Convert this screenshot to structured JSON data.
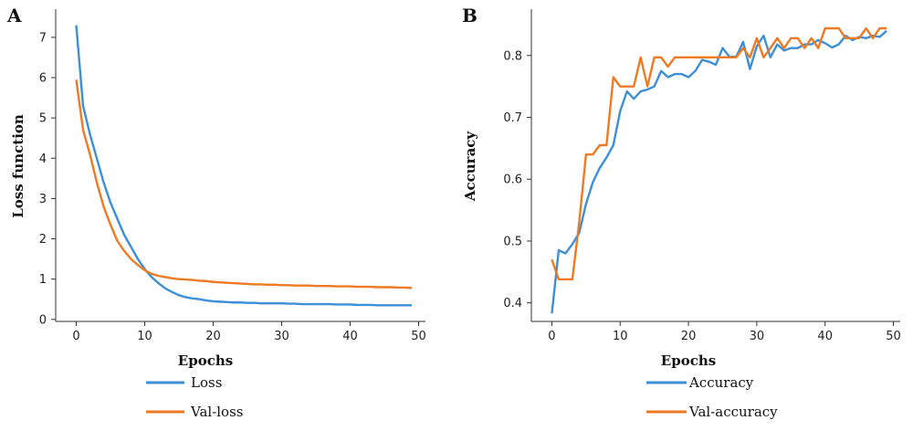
{
  "colors": {
    "series1": "#3d8fd6",
    "series2": "#ee7a24",
    "axis": "#333333"
  },
  "chart_data": [
    {
      "type": "line",
      "panel_label": "A",
      "xlabel": "Epochs",
      "ylabel": "Loss function",
      "xlim": [
        -3,
        51
      ],
      "ylim": [
        -0.05,
        7.7
      ],
      "xticks": [
        0,
        10,
        20,
        30,
        40,
        50
      ],
      "yticks": [
        0,
        1,
        2,
        3,
        4,
        5,
        6,
        7
      ],
      "legend_position": "bottom-left below axes",
      "series": [
        {
          "name": "Loss",
          "x": [
            0,
            1,
            2,
            3,
            4,
            5,
            6,
            7,
            8,
            9,
            10,
            11,
            12,
            13,
            14,
            15,
            16,
            17,
            18,
            19,
            20,
            21,
            22,
            23,
            24,
            25,
            26,
            27,
            28,
            29,
            30,
            31,
            32,
            33,
            34,
            35,
            36,
            37,
            38,
            39,
            40,
            41,
            42,
            43,
            44,
            45,
            46,
            47,
            48,
            49
          ],
          "y": [
            7.3,
            5.3,
            4.6,
            4.0,
            3.4,
            2.9,
            2.5,
            2.1,
            1.8,
            1.5,
            1.25,
            1.05,
            0.9,
            0.77,
            0.68,
            0.6,
            0.55,
            0.52,
            0.5,
            0.47,
            0.45,
            0.44,
            0.43,
            0.42,
            0.42,
            0.41,
            0.41,
            0.4,
            0.4,
            0.4,
            0.4,
            0.39,
            0.39,
            0.38,
            0.38,
            0.38,
            0.38,
            0.38,
            0.37,
            0.37,
            0.37,
            0.36,
            0.36,
            0.36,
            0.35,
            0.35,
            0.35,
            0.35,
            0.35,
            0.35
          ]
        },
        {
          "name": "Val-loss",
          "x": [
            0,
            1,
            2,
            3,
            4,
            5,
            6,
            7,
            8,
            9,
            10,
            11,
            12,
            13,
            14,
            15,
            16,
            17,
            18,
            19,
            20,
            21,
            22,
            23,
            24,
            25,
            26,
            27,
            28,
            29,
            30,
            31,
            32,
            33,
            34,
            35,
            36,
            37,
            38,
            39,
            40,
            41,
            42,
            43,
            44,
            45,
            46,
            47,
            48,
            49
          ],
          "y": [
            5.95,
            4.7,
            4.1,
            3.4,
            2.8,
            2.35,
            1.95,
            1.7,
            1.5,
            1.35,
            1.22,
            1.13,
            1.08,
            1.05,
            1.02,
            1.0,
            0.99,
            0.98,
            0.96,
            0.95,
            0.93,
            0.92,
            0.91,
            0.9,
            0.89,
            0.88,
            0.87,
            0.87,
            0.86,
            0.86,
            0.85,
            0.85,
            0.84,
            0.84,
            0.84,
            0.83,
            0.83,
            0.83,
            0.82,
            0.82,
            0.82,
            0.81,
            0.81,
            0.81,
            0.8,
            0.8,
            0.8,
            0.79,
            0.79,
            0.78
          ]
        }
      ]
    },
    {
      "type": "line",
      "panel_label": "B",
      "xlabel": "Epochs",
      "ylabel": "Accuracy",
      "xlim": [
        -3,
        51
      ],
      "ylim": [
        0.37,
        0.875
      ],
      "xticks": [
        0,
        10,
        20,
        30,
        40,
        50
      ],
      "yticks": [
        0.4,
        0.5,
        0.6,
        0.7,
        0.8
      ],
      "ytick_labels": [
        "0.4",
        "0.5",
        "0.6",
        "0.7",
        "0.8"
      ],
      "legend_position": "bottom-left below axes",
      "series": [
        {
          "name": "Accuracy",
          "x": [
            0,
            1,
            2,
            3,
            4,
            5,
            6,
            7,
            8,
            9,
            10,
            11,
            12,
            13,
            14,
            15,
            16,
            17,
            18,
            19,
            20,
            21,
            22,
            23,
            24,
            25,
            26,
            27,
            28,
            29,
            30,
            31,
            32,
            33,
            34,
            35,
            36,
            37,
            38,
            39,
            40,
            41,
            42,
            43,
            44,
            45,
            46,
            47,
            48,
            49
          ],
          "y": [
            0.383,
            0.485,
            0.48,
            0.495,
            0.513,
            0.56,
            0.595,
            0.618,
            0.635,
            0.655,
            0.71,
            0.742,
            0.73,
            0.742,
            0.745,
            0.75,
            0.775,
            0.765,
            0.77,
            0.77,
            0.765,
            0.775,
            0.793,
            0.79,
            0.785,
            0.812,
            0.798,
            0.798,
            0.822,
            0.778,
            0.815,
            0.832,
            0.797,
            0.818,
            0.808,
            0.812,
            0.812,
            0.818,
            0.818,
            0.825,
            0.82,
            0.813,
            0.818,
            0.832,
            0.825,
            0.83,
            0.828,
            0.832,
            0.83,
            0.84
          ]
        },
        {
          "name": "Val-accuracy",
          "x": [
            0,
            1,
            2,
            3,
            4,
            5,
            6,
            7,
            8,
            9,
            10,
            11,
            12,
            13,
            14,
            15,
            16,
            17,
            18,
            19,
            20,
            21,
            22,
            23,
            24,
            25,
            26,
            27,
            28,
            29,
            30,
            31,
            32,
            33,
            34,
            35,
            36,
            37,
            38,
            39,
            40,
            41,
            42,
            43,
            44,
            45,
            46,
            47,
            48,
            49
          ],
          "y": [
            0.47,
            0.438,
            0.438,
            0.438,
            0.53,
            0.64,
            0.64,
            0.655,
            0.655,
            0.765,
            0.75,
            0.75,
            0.75,
            0.797,
            0.75,
            0.797,
            0.797,
            0.782,
            0.797,
            0.797,
            0.797,
            0.797,
            0.797,
            0.797,
            0.797,
            0.797,
            0.797,
            0.797,
            0.812,
            0.797,
            0.828,
            0.797,
            0.812,
            0.828,
            0.812,
            0.828,
            0.828,
            0.812,
            0.828,
            0.812,
            0.844,
            0.844,
            0.844,
            0.828,
            0.828,
            0.828,
            0.844,
            0.828,
            0.844,
            0.844
          ]
        }
      ]
    }
  ]
}
